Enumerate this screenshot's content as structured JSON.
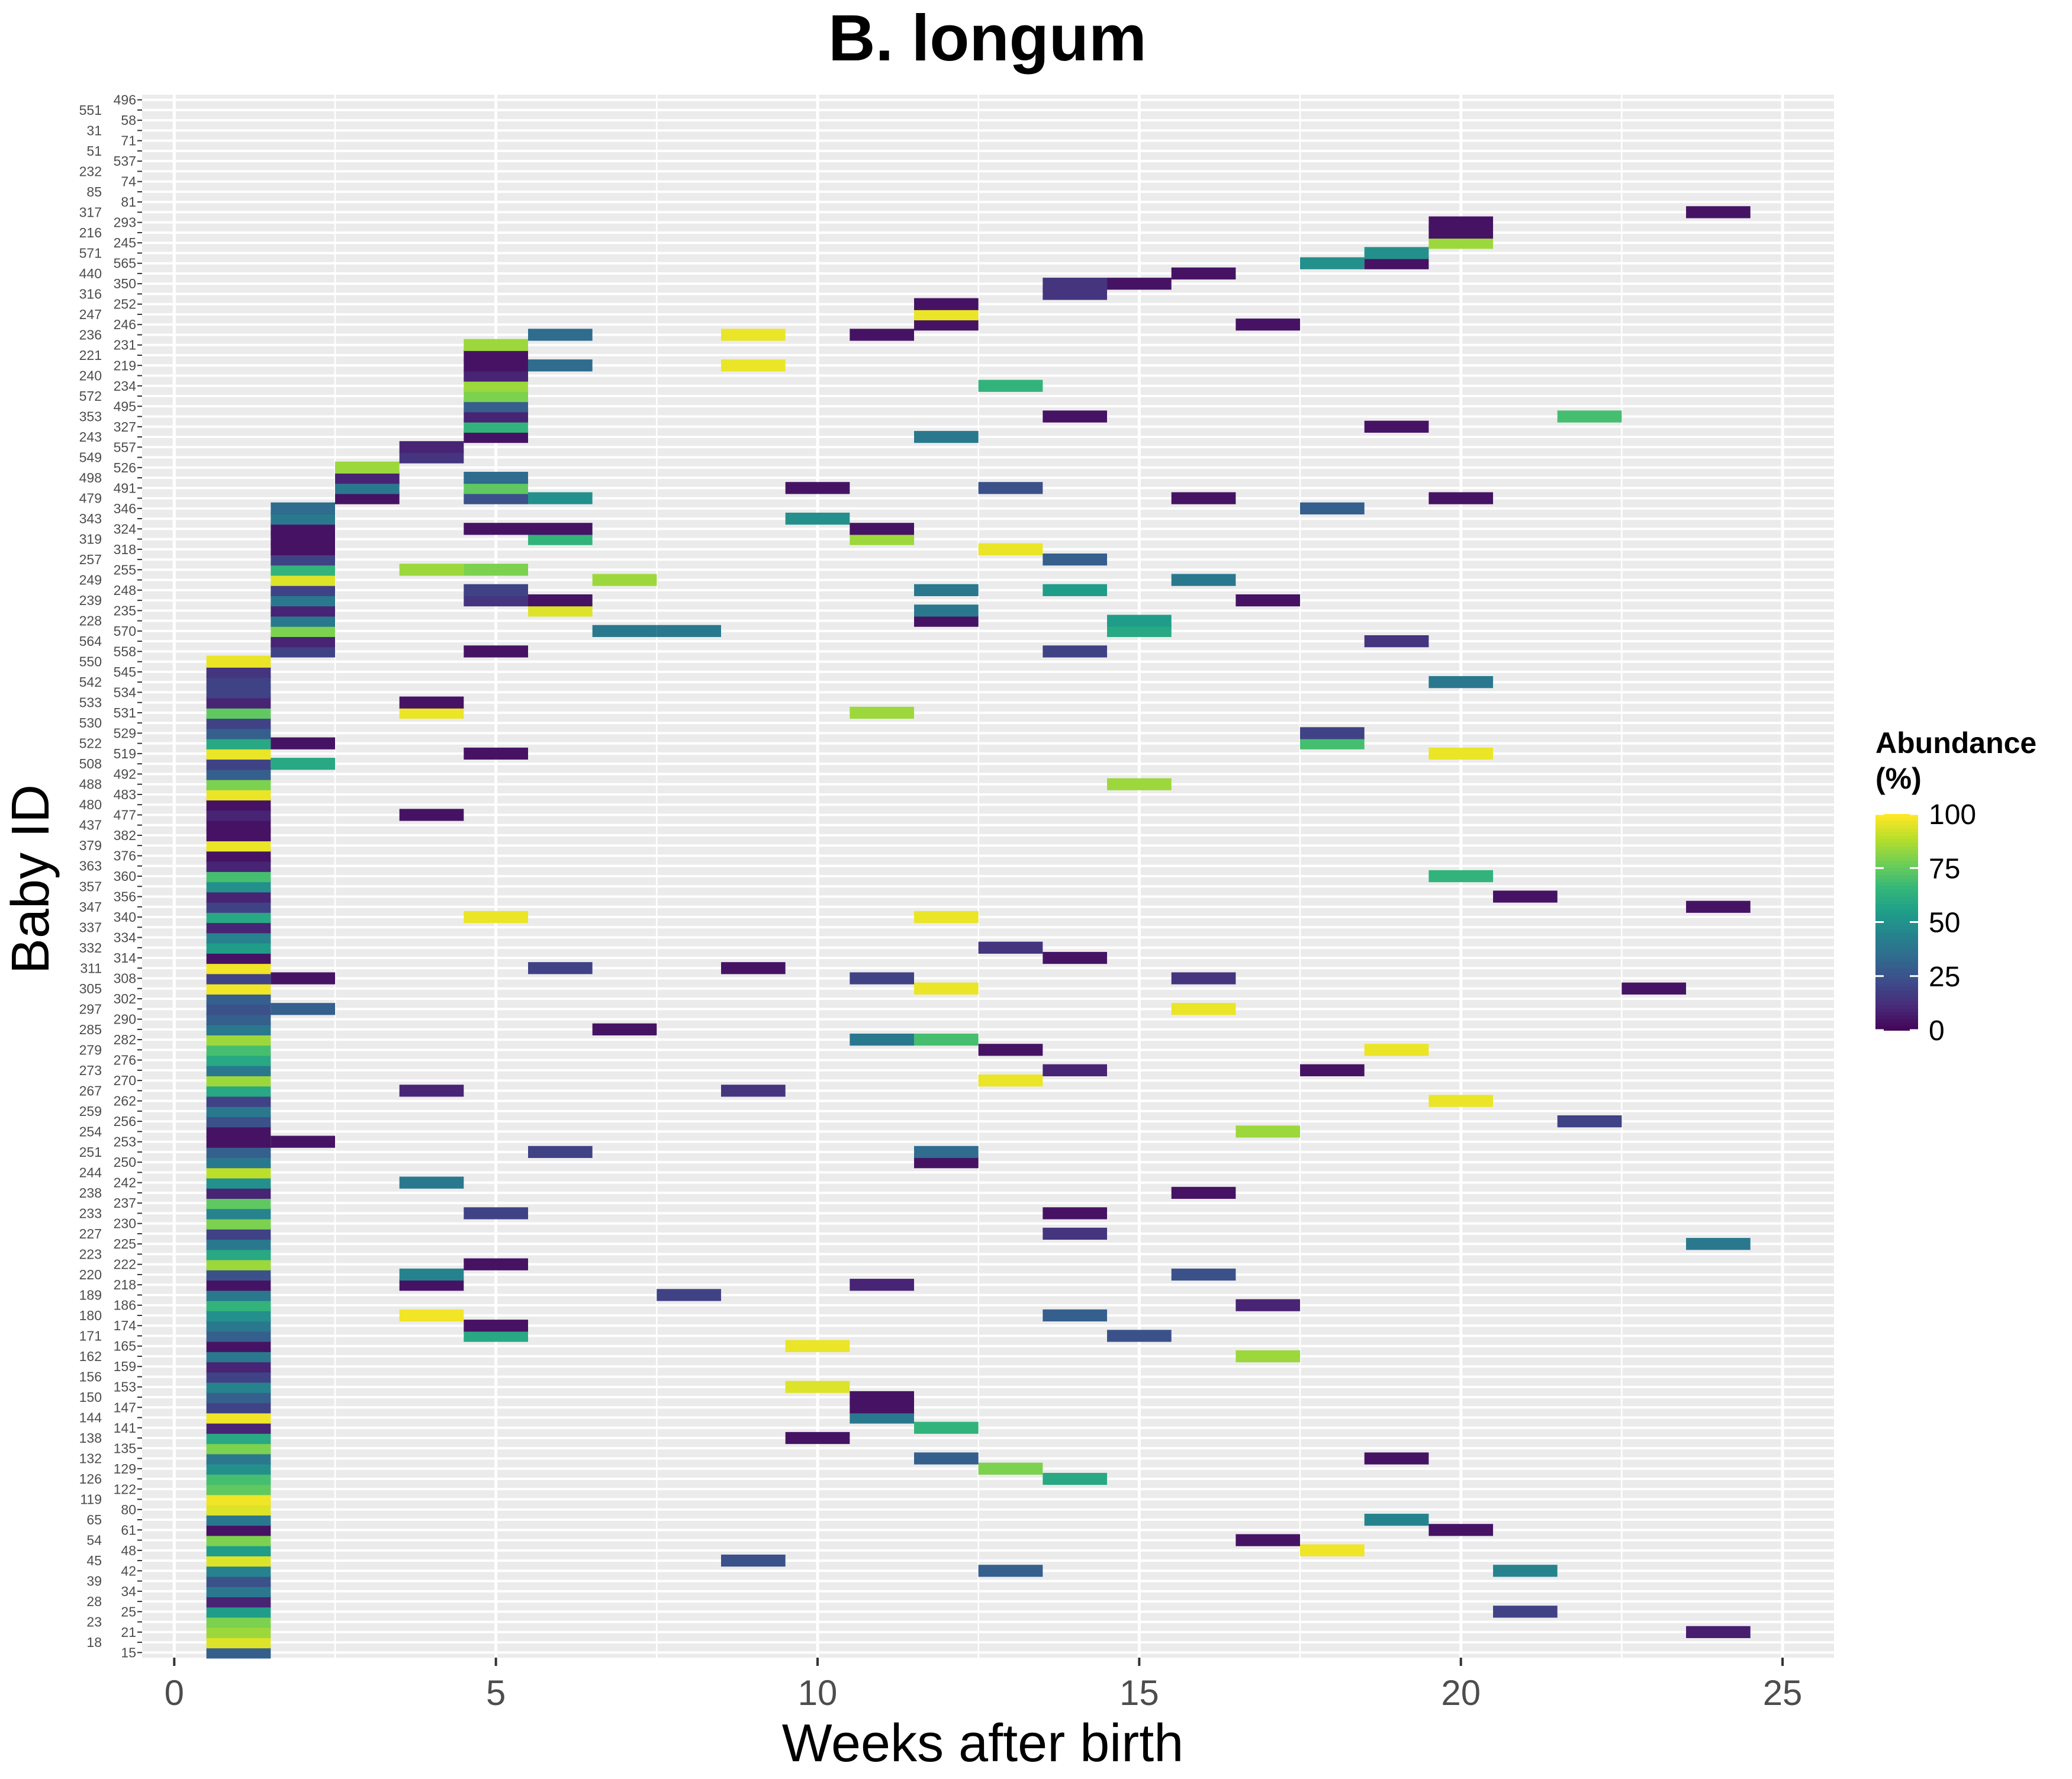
{
  "chart_data": {
    "type": "heatmap",
    "title": "B. longum",
    "xlabel": "Weeks after birth",
    "ylabel": "Baby ID",
    "xlim": [
      -0.5,
      25.8
    ],
    "x_ticks": [
      0,
      5,
      10,
      15,
      20,
      25
    ],
    "grid": true,
    "legend": {
      "title_line1": "Abundance",
      "title_line2": "(%)",
      "placement": "right",
      "ticks": [
        0,
        25,
        50,
        75,
        100
      ],
      "colormap": "viridis"
    },
    "y_labels": [
      "15",
      "18",
      "21",
      "23",
      "25",
      "28",
      "34",
      "39",
      "42",
      "45",
      "48",
      "54",
      "61",
      "65",
      "80",
      "119",
      "122",
      "126",
      "129",
      "132",
      "135",
      "138",
      "141",
      "144",
      "147",
      "150",
      "153",
      "156",
      "159",
      "162",
      "165",
      "171",
      "174",
      "180",
      "186",
      "189",
      "218",
      "220",
      "222",
      "223",
      "225",
      "227",
      "230",
      "233",
      "237",
      "238",
      "242",
      "244",
      "250",
      "251",
      "253",
      "254",
      "256",
      "259",
      "262",
      "267",
      "270",
      "273",
      "276",
      "279",
      "282",
      "285",
      "290",
      "297",
      "302",
      "305",
      "308",
      "311",
      "314",
      "332",
      "334",
      "337",
      "340",
      "347",
      "356",
      "357",
      "360",
      "363",
      "376",
      "379",
      "382",
      "437",
      "477",
      "480",
      "483",
      "488",
      "492",
      "508",
      "519",
      "522",
      "529",
      "530",
      "531",
      "533",
      "534",
      "542",
      "545",
      "550",
      "558",
      "564",
      "570",
      "228",
      "235",
      "239",
      "248",
      "249",
      "255",
      "257",
      "318",
      "319",
      "324",
      "343",
      "346",
      "479",
      "491",
      "498",
      "526",
      "549",
      "557",
      "243",
      "327",
      "353",
      "495",
      "572",
      "234",
      "240",
      "219",
      "221",
      "231",
      "236",
      "246",
      "247",
      "252",
      "316",
      "350",
      "440",
      "565",
      "571",
      "245",
      "216",
      "293",
      "317",
      "81",
      "85",
      "74",
      "232",
      "537",
      "51",
      "71",
      "31",
      "58",
      "551",
      "496"
    ],
    "cells": [
      [
        0,
        1,
        30
      ],
      [
        1,
        1,
        95
      ],
      [
        2,
        1,
        85
      ],
      [
        2,
        24,
        8
      ],
      [
        3,
        1,
        80
      ],
      [
        4,
        1,
        55
      ],
      [
        4,
        21,
        20
      ],
      [
        5,
        1,
        10
      ],
      [
        6,
        1,
        40
      ],
      [
        7,
        1,
        25
      ],
      [
        8,
        1,
        45
      ],
      [
        8,
        13,
        30
      ],
      [
        8,
        21,
        45
      ],
      [
        9,
        1,
        95
      ],
      [
        9,
        9,
        25
      ],
      [
        10,
        1,
        55
      ],
      [
        10,
        18,
        98
      ],
      [
        11,
        1,
        80
      ],
      [
        11,
        17,
        5
      ],
      [
        12,
        1,
        5
      ],
      [
        12,
        20,
        5
      ],
      [
        13,
        1,
        40
      ],
      [
        13,
        19,
        45
      ],
      [
        14,
        1,
        95
      ],
      [
        15,
        1,
        98
      ],
      [
        16,
        1,
        75
      ],
      [
        17,
        1,
        70
      ],
      [
        17,
        14,
        60
      ],
      [
        18,
        1,
        50
      ],
      [
        18,
        13,
        80
      ],
      [
        19,
        1,
        40
      ],
      [
        19,
        12,
        30
      ],
      [
        19,
        19,
        5
      ],
      [
        20,
        1,
        80
      ],
      [
        21,
        1,
        60
      ],
      [
        21,
        10,
        5
      ],
      [
        22,
        1,
        10
      ],
      [
        22,
        12,
        65
      ],
      [
        23,
        1,
        98
      ],
      [
        23,
        11,
        40
      ],
      [
        24,
        1,
        20
      ],
      [
        24,
        11,
        5
      ],
      [
        25,
        1,
        30
      ],
      [
        25,
        11,
        5
      ],
      [
        26,
        1,
        45
      ],
      [
        26,
        10,
        95
      ],
      [
        27,
        1,
        20
      ],
      [
        28,
        1,
        10
      ],
      [
        29,
        1,
        40
      ],
      [
        29,
        17,
        85
      ],
      [
        30,
        1,
        5
      ],
      [
        30,
        10,
        97
      ],
      [
        31,
        1,
        30
      ],
      [
        31,
        5,
        60
      ],
      [
        31,
        15,
        25
      ],
      [
        32,
        1,
        40
      ],
      [
        32,
        5,
        5
      ],
      [
        33,
        1,
        50
      ],
      [
        33,
        4,
        98
      ],
      [
        33,
        14,
        30
      ],
      [
        34,
        1,
        65
      ],
      [
        34,
        17,
        10
      ],
      [
        35,
        1,
        40
      ],
      [
        35,
        8,
        20
      ],
      [
        36,
        1,
        5
      ],
      [
        36,
        4,
        5
      ],
      [
        36,
        11,
        10
      ],
      [
        37,
        1,
        25
      ],
      [
        37,
        4,
        45
      ],
      [
        37,
        16,
        25
      ],
      [
        38,
        1,
        85
      ],
      [
        38,
        5,
        5
      ],
      [
        39,
        1,
        60
      ],
      [
        40,
        1,
        40
      ],
      [
        40,
        24,
        40
      ],
      [
        41,
        1,
        20
      ],
      [
        41,
        14,
        15
      ],
      [
        42,
        1,
        80
      ],
      [
        43,
        1,
        45
      ],
      [
        43,
        5,
        20
      ],
      [
        43,
        14,
        5
      ],
      [
        44,
        1,
        75
      ],
      [
        45,
        1,
        10
      ],
      [
        45,
        16,
        5
      ],
      [
        46,
        1,
        50
      ],
      [
        46,
        4,
        40
      ],
      [
        47,
        1,
        90
      ],
      [
        48,
        1,
        40
      ],
      [
        48,
        12,
        5
      ],
      [
        49,
        1,
        30
      ],
      [
        49,
        6,
        20
      ],
      [
        49,
        12,
        35
      ],
      [
        50,
        1,
        5
      ],
      [
        50,
        2,
        5
      ],
      [
        51,
        1,
        5
      ],
      [
        51,
        17,
        85
      ],
      [
        52,
        1,
        25
      ],
      [
        52,
        22,
        20
      ],
      [
        53,
        1,
        40
      ],
      [
        54,
        1,
        20
      ],
      [
        54,
        20,
        97
      ],
      [
        55,
        1,
        60
      ],
      [
        55,
        4,
        10
      ],
      [
        55,
        9,
        15
      ],
      [
        56,
        1,
        85
      ],
      [
        56,
        13,
        97
      ],
      [
        57,
        1,
        40
      ],
      [
        57,
        14,
        10
      ],
      [
        57,
        18,
        5
      ],
      [
        58,
        1,
        60
      ],
      [
        59,
        1,
        70
      ],
      [
        59,
        13,
        5
      ],
      [
        59,
        19,
        97
      ],
      [
        60,
        1,
        85
      ],
      [
        60,
        11,
        40
      ],
      [
        60,
        12,
        70
      ],
      [
        61,
        1,
        40
      ],
      [
        61,
        7,
        5
      ],
      [
        62,
        1,
        30
      ],
      [
        63,
        1,
        25
      ],
      [
        63,
        2,
        30
      ],
      [
        63,
        16,
        97
      ],
      [
        64,
        1,
        30
      ],
      [
        65,
        1,
        98
      ],
      [
        65,
        12,
        97
      ],
      [
        65,
        23,
        5
      ],
      [
        66,
        1,
        20
      ],
      [
        66,
        2,
        5
      ],
      [
        66,
        11,
        20
      ],
      [
        66,
        16,
        15
      ],
      [
        67,
        1,
        98
      ],
      [
        67,
        6,
        20
      ],
      [
        67,
        9,
        5
      ],
      [
        68,
        1,
        5
      ],
      [
        68,
        14,
        5
      ],
      [
        69,
        1,
        55
      ],
      [
        69,
        13,
        15
      ],
      [
        70,
        1,
        45
      ],
      [
        71,
        1,
        10
      ],
      [
        72,
        1,
        60
      ],
      [
        72,
        5,
        97
      ],
      [
        72,
        12,
        97
      ],
      [
        73,
        1,
        20
      ],
      [
        73,
        24,
        5
      ],
      [
        74,
        1,
        10
      ],
      [
        74,
        21,
        5
      ],
      [
        75,
        1,
        50
      ],
      [
        76,
        1,
        70
      ],
      [
        76,
        20,
        65
      ],
      [
        77,
        1,
        10
      ],
      [
        78,
        1,
        5
      ],
      [
        79,
        1,
        97
      ],
      [
        80,
        1,
        5
      ],
      [
        81,
        1,
        5
      ],
      [
        82,
        1,
        10
      ],
      [
        82,
        4,
        5
      ],
      [
        83,
        1,
        5
      ],
      [
        84,
        1,
        97
      ],
      [
        85,
        1,
        80
      ],
      [
        85,
        15,
        85
      ],
      [
        86,
        1,
        30
      ],
      [
        87,
        1,
        20
      ],
      [
        87,
        2,
        60
      ],
      [
        88,
        1,
        97
      ],
      [
        88,
        5,
        5
      ],
      [
        88,
        20,
        97
      ],
      [
        89,
        1,
        60
      ],
      [
        89,
        2,
        5
      ],
      [
        89,
        18,
        70
      ],
      [
        90,
        1,
        30
      ],
      [
        90,
        18,
        20
      ],
      [
        91,
        1,
        20
      ],
      [
        92,
        1,
        75
      ],
      [
        92,
        4,
        97
      ],
      [
        92,
        11,
        85
      ],
      [
        93,
        1,
        10
      ],
      [
        93,
        4,
        5
      ],
      [
        94,
        1,
        20
      ],
      [
        95,
        1,
        20
      ],
      [
        95,
        20,
        40
      ],
      [
        96,
        1,
        15
      ],
      [
        97,
        1,
        97
      ],
      [
        98,
        2,
        20
      ],
      [
        98,
        5,
        5
      ],
      [
        98,
        14,
        20
      ],
      [
        99,
        2,
        10
      ],
      [
        99,
        19,
        15
      ],
      [
        100,
        2,
        80
      ],
      [
        100,
        7,
        40
      ],
      [
        100,
        8,
        40
      ],
      [
        100,
        15,
        60
      ],
      [
        101,
        2,
        40
      ],
      [
        101,
        12,
        5
      ],
      [
        101,
        15,
        55
      ],
      [
        102,
        2,
        10
      ],
      [
        102,
        6,
        95
      ],
      [
        102,
        12,
        40
      ],
      [
        103,
        2,
        40
      ],
      [
        103,
        5,
        15
      ],
      [
        103,
        6,
        5
      ],
      [
        103,
        17,
        5
      ],
      [
        104,
        2,
        20
      ],
      [
        104,
        5,
        20
      ],
      [
        104,
        12,
        40
      ],
      [
        104,
        14,
        55
      ],
      [
        105,
        2,
        95
      ],
      [
        105,
        7,
        85
      ],
      [
        105,
        16,
        40
      ],
      [
        106,
        2,
        65
      ],
      [
        106,
        4,
        85
      ],
      [
        106,
        5,
        80
      ],
      [
        107,
        2,
        20
      ],
      [
        107,
        14,
        30
      ],
      [
        108,
        2,
        5
      ],
      [
        108,
        13,
        97
      ],
      [
        109,
        2,
        5
      ],
      [
        109,
        6,
        65
      ],
      [
        109,
        11,
        85
      ],
      [
        110,
        2,
        5
      ],
      [
        110,
        5,
        5
      ],
      [
        110,
        6,
        5
      ],
      [
        110,
        11,
        5
      ],
      [
        111,
        2,
        40
      ],
      [
        111,
        10,
        50
      ],
      [
        112,
        2,
        35
      ],
      [
        112,
        18,
        30
      ],
      [
        113,
        3,
        5
      ],
      [
        113,
        5,
        25
      ],
      [
        113,
        6,
        50
      ],
      [
        113,
        16,
        5
      ],
      [
        113,
        20,
        5
      ],
      [
        114,
        3,
        40
      ],
      [
        114,
        5,
        75
      ],
      [
        114,
        10,
        5
      ],
      [
        114,
        13,
        25
      ],
      [
        115,
        3,
        10
      ],
      [
        115,
        5,
        35
      ],
      [
        116,
        3,
        85
      ],
      [
        117,
        4,
        15
      ],
      [
        118,
        4,
        10
      ],
      [
        119,
        5,
        5
      ],
      [
        119,
        12,
        40
      ],
      [
        120,
        5,
        65
      ],
      [
        120,
        19,
        5
      ],
      [
        121,
        5,
        10
      ],
      [
        121,
        14,
        5
      ],
      [
        121,
        22,
        70
      ],
      [
        122,
        5,
        30
      ],
      [
        123,
        5,
        80
      ],
      [
        124,
        5,
        85
      ],
      [
        124,
        13,
        65
      ],
      [
        125,
        5,
        10
      ],
      [
        126,
        5,
        5
      ],
      [
        126,
        6,
        35
      ],
      [
        126,
        9,
        97
      ],
      [
        127,
        5,
        5
      ],
      [
        128,
        5,
        85
      ],
      [
        129,
        6,
        35
      ],
      [
        129,
        9,
        97
      ],
      [
        129,
        11,
        5
      ],
      [
        130,
        12,
        5
      ],
      [
        130,
        17,
        5
      ],
      [
        131,
        12,
        97
      ],
      [
        132,
        12,
        5
      ],
      [
        133,
        14,
        15
      ],
      [
        134,
        14,
        15
      ],
      [
        134,
        15,
        5
      ],
      [
        135,
        16,
        5
      ],
      [
        136,
        18,
        50
      ],
      [
        136,
        19,
        5
      ],
      [
        137,
        19,
        50
      ],
      [
        138,
        20,
        85
      ],
      [
        139,
        20,
        5
      ],
      [
        140,
        20,
        5
      ],
      [
        141,
        24,
        5
      ]
    ]
  }
}
